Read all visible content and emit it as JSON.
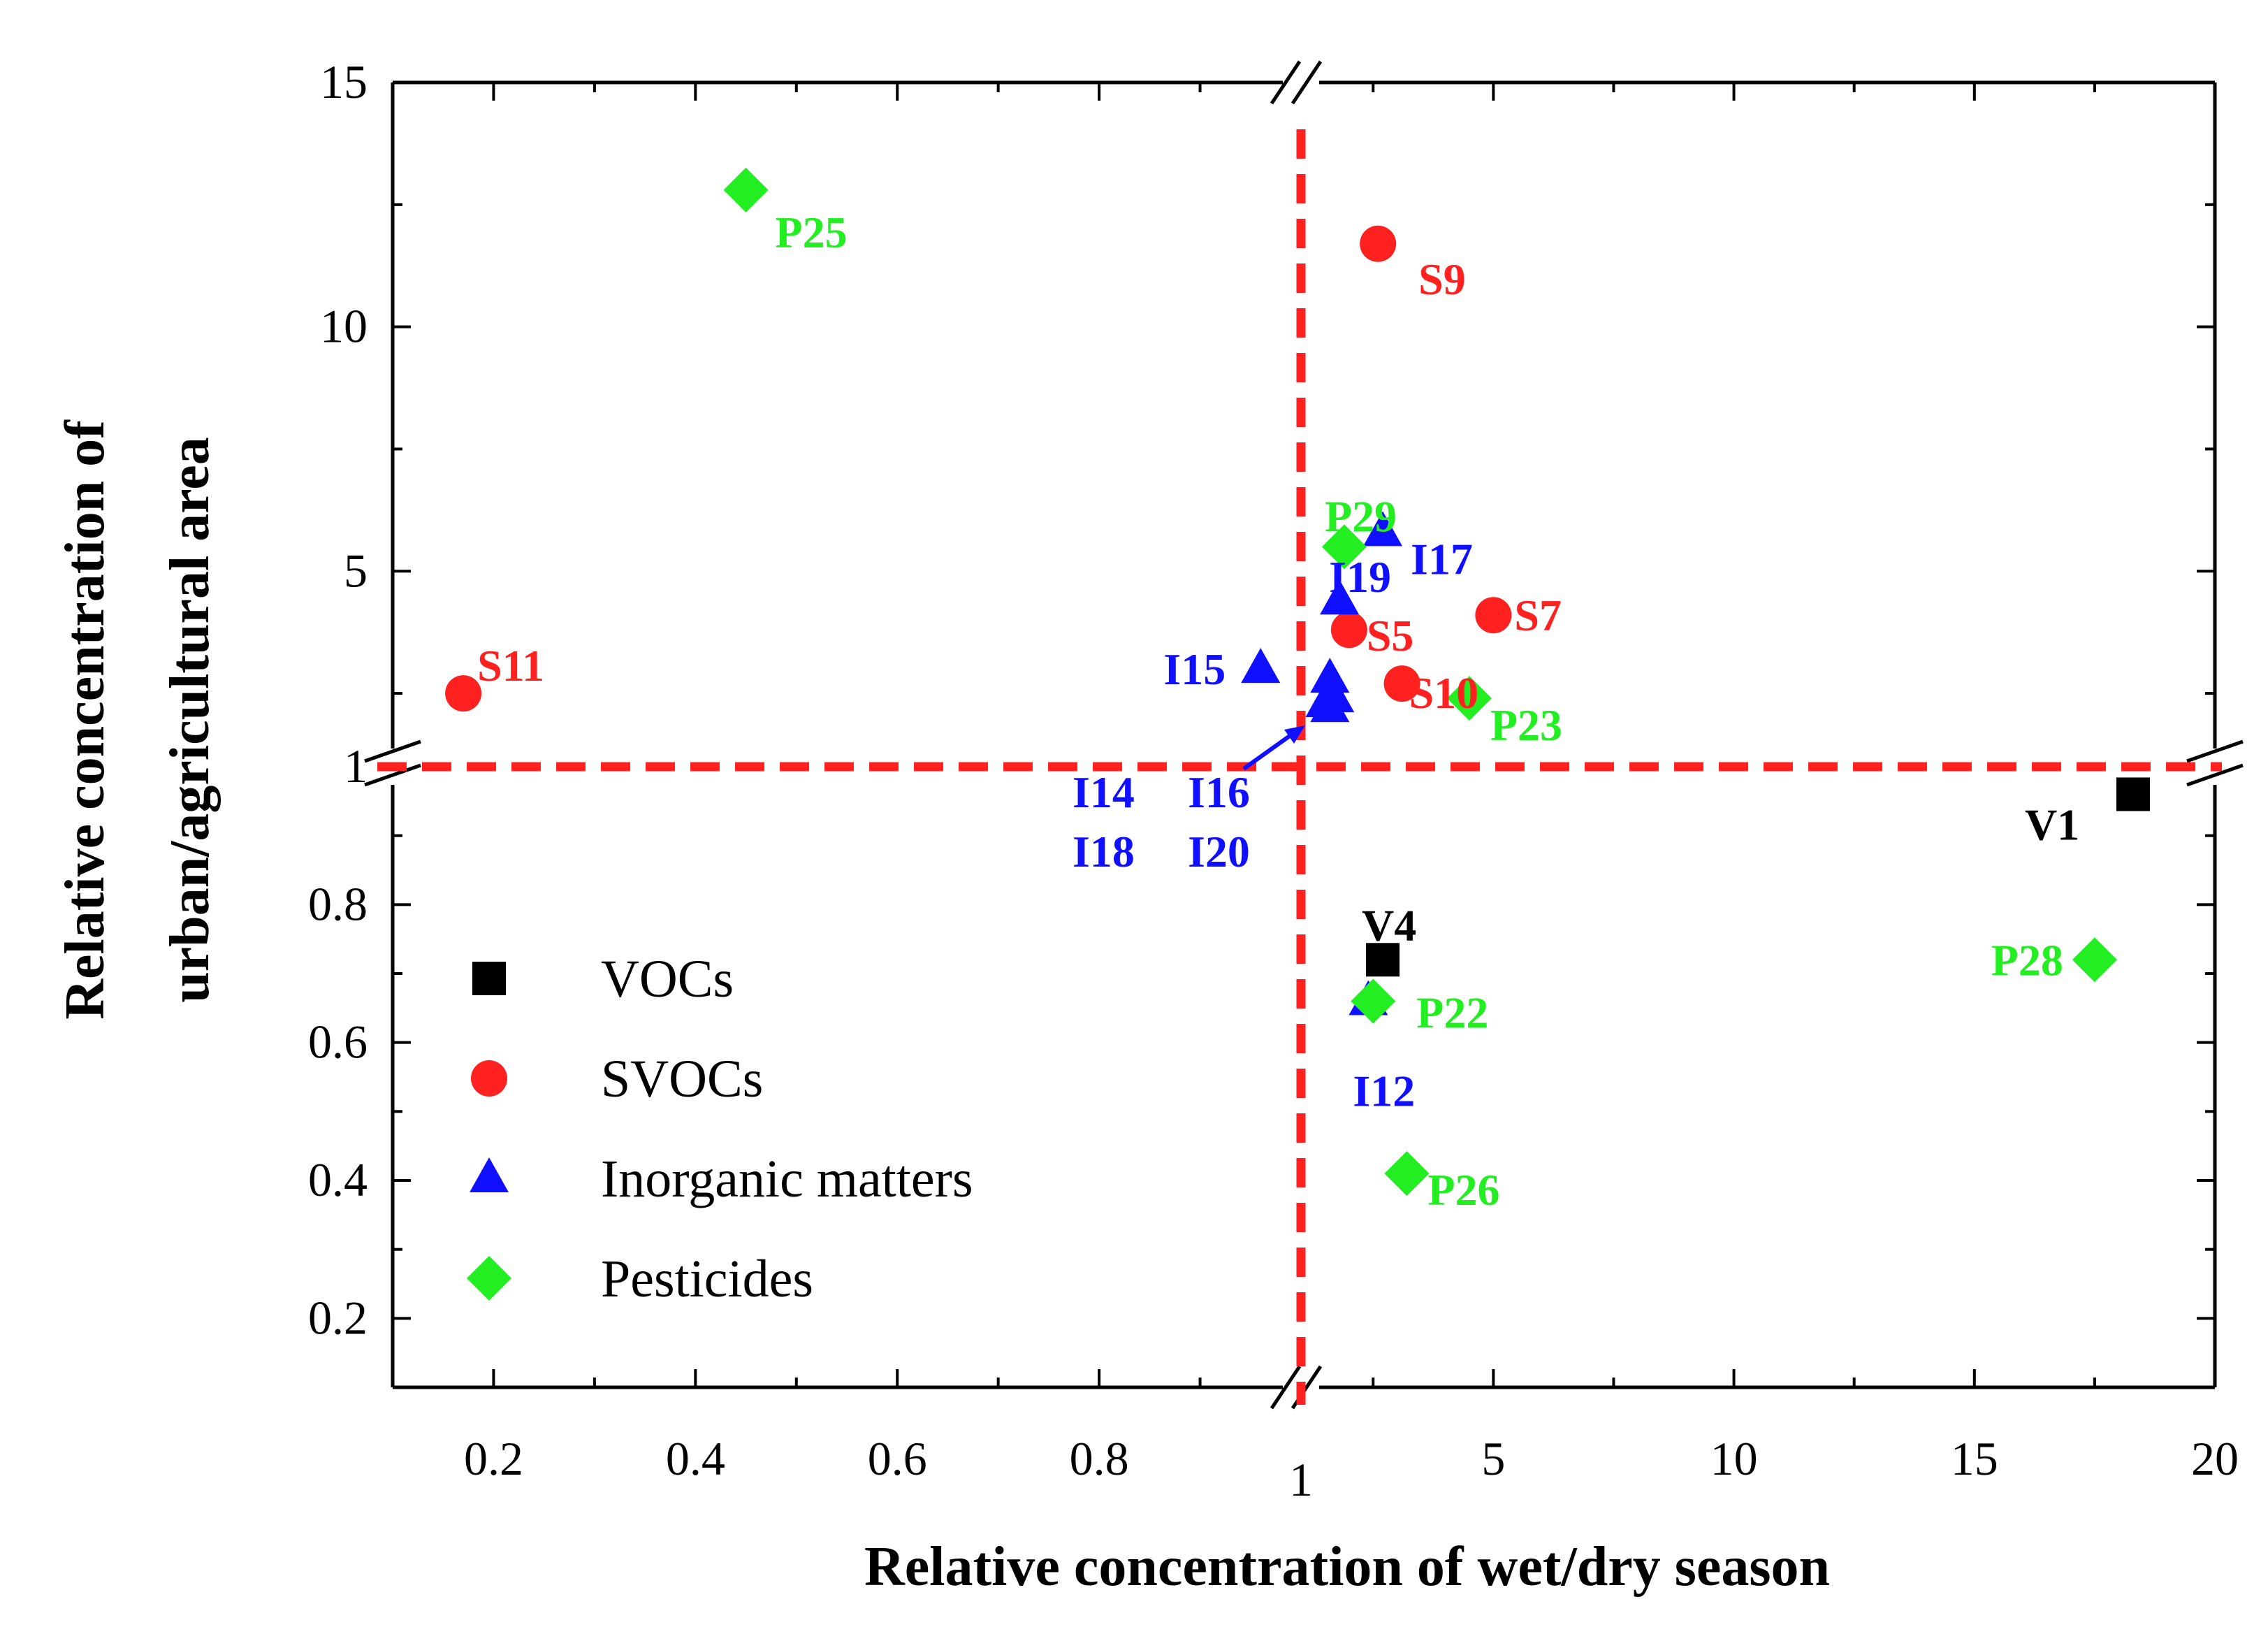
{
  "chart_data": {
    "type": "scatter",
    "xlabel": "Relative concentration of wet/dry season",
    "ylabel_lines": [
      "Relative concentration of",
      "urban/agricultural area"
    ],
    "x_axis": {
      "broken": true,
      "segments": [
        [
          0.1,
          1
        ],
        [
          1,
          20
        ]
      ],
      "ticks": [
        "0.2",
        "0.4",
        "0.6",
        "0.8",
        "1",
        "5",
        "10",
        "15",
        "20"
      ]
    },
    "y_axis": {
      "broken": true,
      "segments": [
        [
          0.1,
          1
        ],
        [
          1,
          15
        ]
      ],
      "ticks": [
        "0.2",
        "0.4",
        "0.6",
        "0.8",
        "1",
        "5",
        "10",
        "15"
      ]
    },
    "reference_lines": {
      "x": 1,
      "y": 1,
      "style": "dashed",
      "color": "#ff2020"
    },
    "legend": {
      "position": "bottom-left"
    },
    "series": [
      {
        "name": "VOCs",
        "marker": "square",
        "color": "#000000",
        "points": [
          {
            "label": "V1",
            "x": 18.3,
            "y": 0.96
          },
          {
            "label": "V4",
            "x": 2.7,
            "y": 0.72
          }
        ]
      },
      {
        "name": "SVOCs",
        "marker": "circle",
        "color": "#ff2020",
        "points": [
          {
            "label": "S5",
            "x": 2.0,
            "y": 3.8
          },
          {
            "label": "S7",
            "x": 5.0,
            "y": 4.1
          },
          {
            "label": "S9",
            "x": 2.6,
            "y": 11.7
          },
          {
            "label": "S10",
            "x": 3.1,
            "y": 2.7
          },
          {
            "label": "S11",
            "x": 0.17,
            "y": 2.5
          }
        ]
      },
      {
        "name": "Inorganic matters",
        "marker": "triangle",
        "color": "#1010ff",
        "points": [
          {
            "label": "I12",
            "x": 2.4,
            "y": 0.66
          },
          {
            "label": "I14",
            "x": 1.5,
            "y": 2.3
          },
          {
            "label": "I15",
            "x": 0.96,
            "y": 3.0
          },
          {
            "label": "I16",
            "x": 1.6,
            "y": 2.2
          },
          {
            "label": "I17",
            "x": 2.7,
            "y": 5.8
          },
          {
            "label": "I18",
            "x": 1.7,
            "y": 2.4
          },
          {
            "label": "I19",
            "x": 1.8,
            "y": 4.4
          },
          {
            "label": "I20",
            "x": 1.6,
            "y": 2.8
          }
        ],
        "group_labels": [
          {
            "labels": [
              "I14",
              "I16",
              "I18",
              "I20"
            ],
            "text_lines": [
              [
                "I14",
                "I16"
              ],
              [
                "I18",
                "I20"
              ]
            ]
          }
        ]
      },
      {
        "name": "Pesticides",
        "marker": "diamond",
        "color": "#22ee22",
        "points": [
          {
            "label": "P22",
            "x": 2.5,
            "y": 0.66
          },
          {
            "label": "P23",
            "x": 4.5,
            "y": 2.4
          },
          {
            "label": "P25",
            "x": 0.45,
            "y": 12.8
          },
          {
            "label": "P26",
            "x": 3.2,
            "y": 0.41
          },
          {
            "label": "P28",
            "x": 17.5,
            "y": 0.72
          },
          {
            "label": "P29",
            "x": 1.9,
            "y": 5.5
          }
        ]
      }
    ]
  }
}
